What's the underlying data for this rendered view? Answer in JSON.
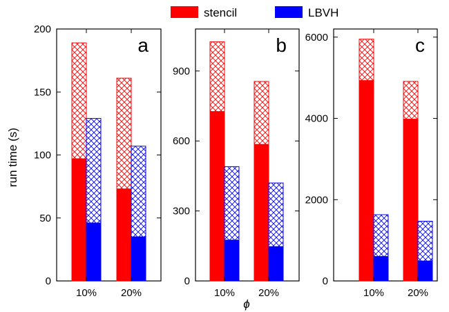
{
  "legend": [
    {
      "name": "stencil",
      "color": "#ff0000"
    },
    {
      "name": "LBVH",
      "color": "#0000ff"
    }
  ],
  "ylabel": "run time (s)",
  "xlabel": "ϕ",
  "chart_data": [
    {
      "type": "bar",
      "panel": "a",
      "categories": [
        "10%",
        "20%"
      ],
      "ylim": [
        0,
        200
      ],
      "yticks": [
        0,
        50,
        100,
        150,
        200
      ],
      "series": [
        {
          "name": "stencil",
          "solid": [
            97,
            73
          ],
          "total": [
            189,
            161
          ]
        },
        {
          "name": "LBVH",
          "solid": [
            46,
            35
          ],
          "total": [
            129,
            107
          ]
        }
      ]
    },
    {
      "type": "bar",
      "panel": "b",
      "categories": [
        "10%",
        "20%"
      ],
      "ylim": [
        0,
        1080
      ],
      "yticks": [
        0,
        300,
        600,
        900
      ],
      "series": [
        {
          "name": "stencil",
          "solid": [
            726,
            585
          ],
          "total": [
            1025,
            855
          ]
        },
        {
          "name": "LBVH",
          "solid": [
            175,
            147
          ],
          "total": [
            490,
            420
          ]
        }
      ]
    },
    {
      "type": "bar",
      "panel": "c",
      "categories": [
        "10%",
        "20%"
      ],
      "ylim": [
        0,
        6200
      ],
      "yticks": [
        0,
        2000,
        4000,
        6000
      ],
      "series": [
        {
          "name": "stencil",
          "solid": [
            4930,
            3980
          ],
          "total": [
            5950,
            4910
          ]
        },
        {
          "name": "LBVH",
          "solid": [
            600,
            490
          ],
          "total": [
            1630,
            1470
          ]
        }
      ]
    }
  ]
}
